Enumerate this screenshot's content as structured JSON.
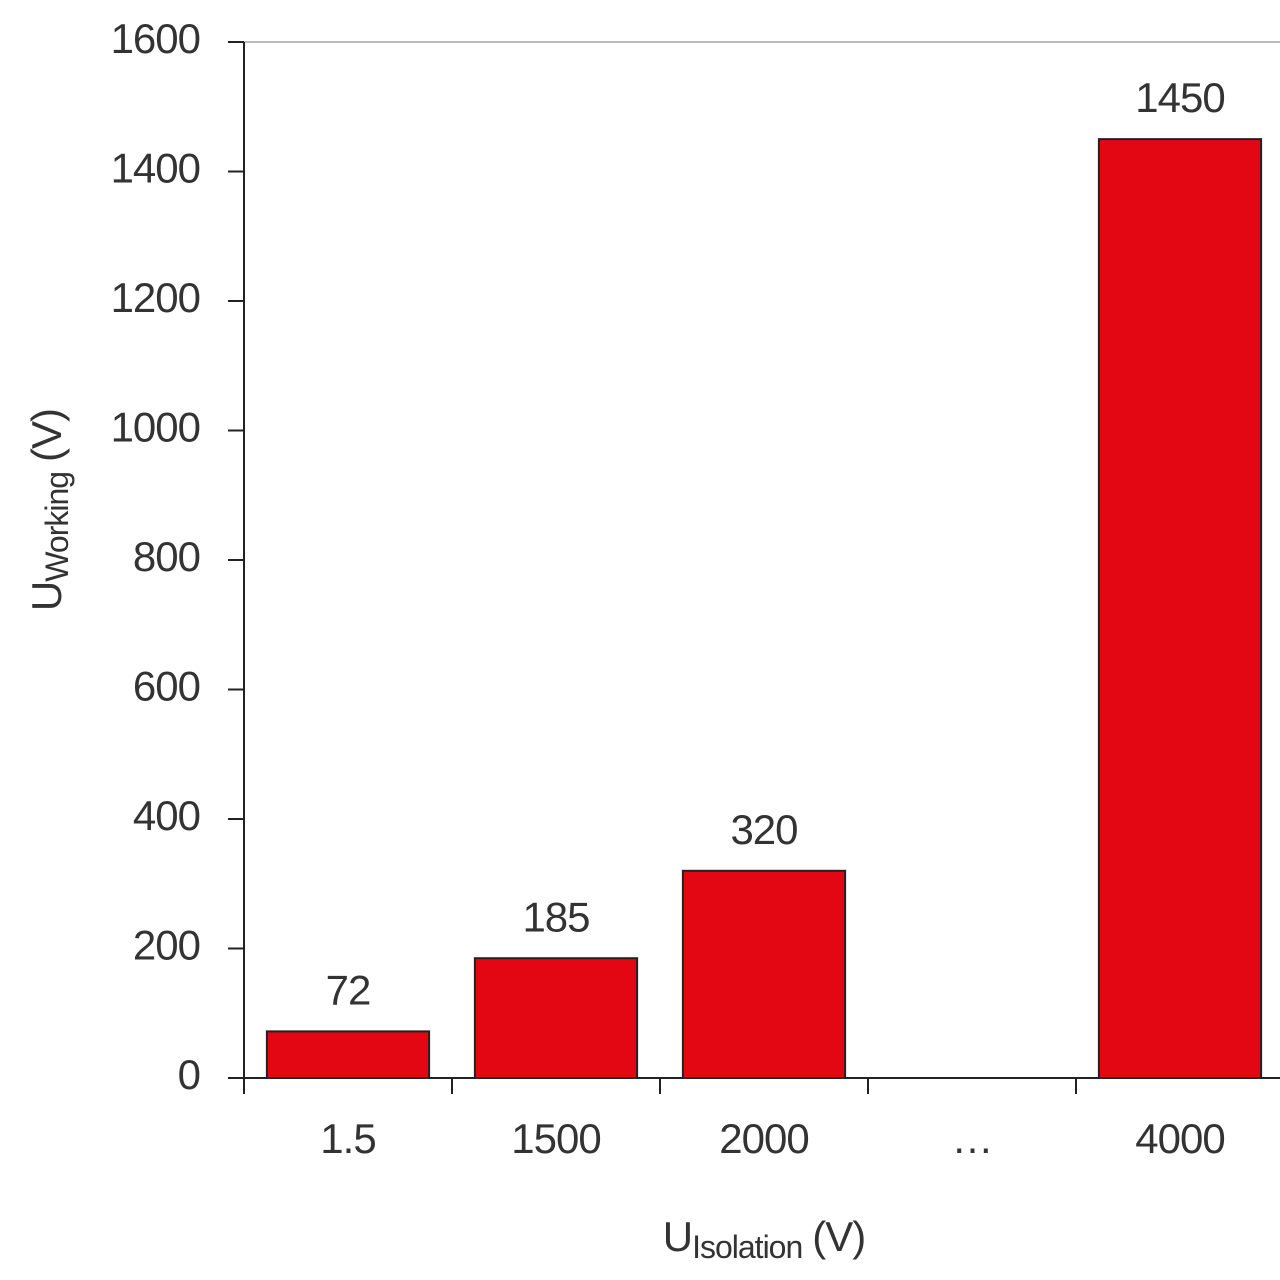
{
  "chart_data": {
    "type": "bar",
    "xlabel": {
      "symbol": "U",
      "subscript": "Isolation",
      "unit": "(V)"
    },
    "ylabel": {
      "symbol": "U",
      "subscript": "Working",
      "unit": "(V)"
    },
    "categories": [
      "1.5",
      "1500",
      "2000",
      "…",
      "4000"
    ],
    "values": [
      72,
      185,
      320,
      null,
      1450
    ],
    "color": "#e30613",
    "ylim": [
      0,
      1600
    ],
    "yticks": [
      0,
      200,
      400,
      600,
      800,
      1000,
      1200,
      1400,
      1600
    ],
    "grid": false
  }
}
